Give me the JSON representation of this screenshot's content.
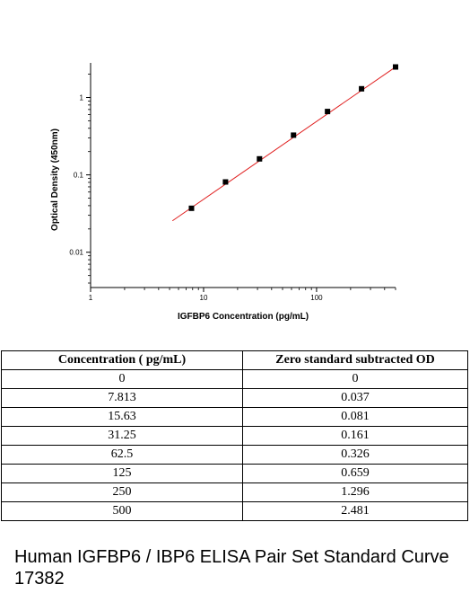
{
  "chart_data": {
    "type": "scatter",
    "xlabel": "IGFBP6 Concentration (pg/mL)",
    "ylabel": "Optical Density (450nm)",
    "xscale": "log",
    "yscale": "log",
    "xlim": [
      1,
      500
    ],
    "ylim": [
      0.0035,
      2.8
    ],
    "x_ticks": [
      {
        "value": 1,
        "label": "1"
      },
      {
        "value": 10,
        "label": "10"
      },
      {
        "value": 100,
        "label": "100"
      }
    ],
    "y_ticks": [
      {
        "value": 0.01,
        "label": "0.01"
      },
      {
        "value": 0.1,
        "label": "0.1"
      },
      {
        "value": 1,
        "label": "1"
      }
    ],
    "series": [
      {
        "points": [
          {
            "x": 7.813,
            "y": 0.037
          },
          {
            "x": 15.63,
            "y": 0.081
          },
          {
            "x": 31.25,
            "y": 0.161
          },
          {
            "x": 62.5,
            "y": 0.326
          },
          {
            "x": 125,
            "y": 0.659
          },
          {
            "x": 250,
            "y": 1.296
          },
          {
            "x": 500,
            "y": 2.481
          }
        ],
        "marker_color": "#000000"
      }
    ],
    "fit_line": {
      "x": [
        5.3,
        500
      ],
      "y": [
        0.0255,
        2.48
      ],
      "color": "#e02020"
    },
    "grid": false
  },
  "table": {
    "headers": [
      "Concentration ( pg/mL)",
      "Zero standard subtracted OD"
    ],
    "rows": [
      [
        "0",
        "0"
      ],
      [
        "7.813",
        "0.037"
      ],
      [
        "15.63",
        "0.081"
      ],
      [
        "31.25",
        "0.161"
      ],
      [
        "62.5",
        "0.326"
      ],
      [
        "125",
        "0.659"
      ],
      [
        "250",
        "1.296"
      ],
      [
        "500",
        "2.481"
      ]
    ]
  },
  "caption": "Human IGFBP6 / IBP6 ELISA Pair Set Standard Curve 17382"
}
